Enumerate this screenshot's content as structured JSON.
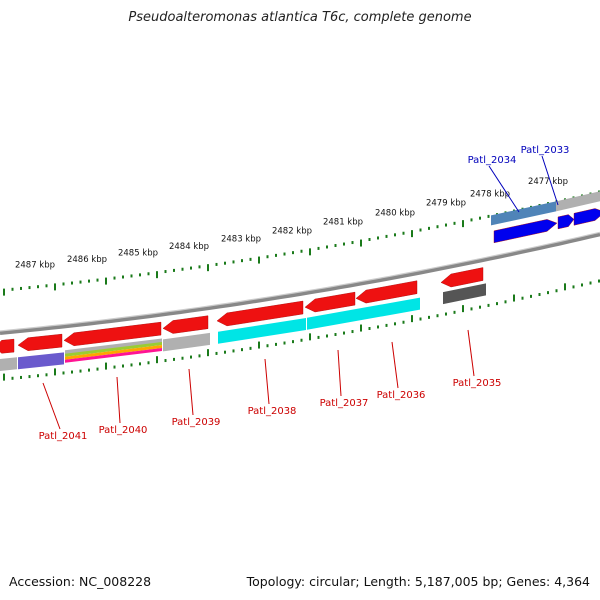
{
  "title": "Pseudoalteromonas atlantica T6c, complete genome",
  "footer": {
    "accession": "Accession: NC_008228",
    "summary": "Topology: circular; Length: 5,187,005 bp; Genes: 4,364"
  },
  "colors": {
    "gene_red": "#ee1111",
    "gene_blue": "#0000ee",
    "cyan": "#00e5e5",
    "purple": "#6a5acd",
    "gray": "#b0b0b0",
    "dark_gray": "#555555",
    "steel": "#4f84b8",
    "tick_green": "#1a7a1a",
    "label_red": "#cc0000",
    "label_blue": "#0000bb"
  },
  "kbp_labels": [
    "2487 kbp",
    "2486 kbp",
    "2485 kbp",
    "2484 kbp",
    "2483 kbp",
    "2482 kbp",
    "2481 kbp",
    "2480 kbp",
    "2479 kbp",
    "2478 kbp",
    "2477 kbp"
  ],
  "genes": [
    {
      "label": "Patl_2041",
      "color": "label_red"
    },
    {
      "label": "Patl_2040",
      "color": "label_red"
    },
    {
      "label": "Patl_2039",
      "color": "label_red"
    },
    {
      "label": "Patl_2038",
      "color": "label_red"
    },
    {
      "label": "Patl_2037",
      "color": "label_red"
    },
    {
      "label": "Patl_2036",
      "color": "label_red"
    },
    {
      "label": "Patl_2035",
      "color": "label_red"
    },
    {
      "label": "Patl_2034",
      "color": "label_blue"
    },
    {
      "label": "Patl_2033",
      "color": "label_blue"
    }
  ]
}
